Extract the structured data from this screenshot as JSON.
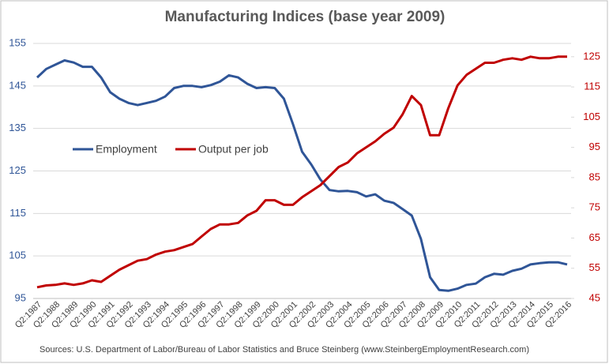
{
  "chart_data": {
    "type": "line",
    "title": "Manufacturing Indices (base year 2009)",
    "source": "Sources: U.S. Department of Labor/Bureau of Labor Statistics and Bruce Steinberg (www.SteinbergEmploymentResearch.com)",
    "categories": [
      "Q2:1987",
      null,
      "Q2:1988",
      null,
      "Q2:1989",
      null,
      "Q2:1990",
      null,
      "Q2:1991",
      null,
      "Q2:1992",
      null,
      "Q2:1993",
      null,
      "Q2:1994",
      null,
      "Q2:1995",
      null,
      "Q2:1996",
      null,
      "Q2:1997",
      null,
      "Q2:1998",
      null,
      "Q2:1999",
      null,
      "Q2:2000",
      null,
      "Q2:2001",
      null,
      "Q2:2002",
      null,
      "Q2:2003",
      null,
      "Q2:2004",
      null,
      "Q2:2005",
      null,
      "Q2:2006",
      null,
      "Q2:2007",
      null,
      "Q2:2008",
      null,
      "Q2:2009",
      null,
      "Q2:2010",
      null,
      "Q2:2011",
      null,
      "Q2:2012",
      null,
      "Q2:2013",
      null,
      "Q2:2014",
      null,
      "Q2:2015",
      null,
      "Q2:2016"
    ],
    "series": [
      {
        "name": "Employment",
        "color": "#2f5597",
        "axis": "y",
        "values": [
          147,
          149,
          150,
          151,
          150.5,
          149.5,
          149.5,
          147,
          143.5,
          142,
          141,
          140.5,
          141,
          141.5,
          142.5,
          144.5,
          145,
          145,
          144.7,
          145.2,
          146,
          147.5,
          147,
          145.5,
          144.5,
          144.7,
          144.5,
          142,
          136,
          129.5,
          126.5,
          123,
          120.5,
          120.2,
          120.3,
          120,
          119,
          119.5,
          118,
          117.5,
          116,
          114.5,
          109,
          100,
          97,
          96.8,
          97.3,
          98.2,
          98.5,
          100,
          100.8,
          100.6,
          101.5,
          102,
          103,
          103.3,
          103.5,
          103.5,
          103
        ]
      },
      {
        "name": "Output per job",
        "color": "#c00000",
        "axis": "y2",
        "values": [
          48.7,
          49.3,
          49.5,
          50,
          49.5,
          50,
          51,
          50.5,
          52.5,
          54.5,
          56,
          57.5,
          58,
          59.5,
          60.5,
          61,
          62,
          63,
          65.5,
          68,
          69.5,
          69.5,
          70,
          72.5,
          74,
          77.5,
          77.5,
          76,
          76,
          78.5,
          80.5,
          82.5,
          85.5,
          88.5,
          90,
          93,
          95,
          97,
          99.5,
          101.5,
          106,
          112,
          109,
          99,
          99,
          108,
          115.5,
          119,
          121,
          123,
          123,
          124,
          124.5,
          124,
          125,
          124.5,
          124.5,
          125,
          125
        ]
      }
    ],
    "ylim": [
      95,
      155
    ],
    "yticks": [
      95,
      105,
      115,
      125,
      135,
      145,
      155
    ],
    "y2lim": [
      45,
      129.4
    ],
    "y2ticks": [
      45,
      55,
      65,
      75,
      85,
      95,
      105,
      115,
      125
    ],
    "grid": true
  }
}
